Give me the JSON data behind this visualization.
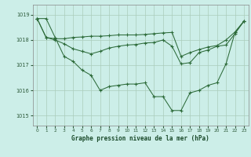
{
  "background_color": "#cceee8",
  "grid_color": "#aaccbb",
  "line_color": "#2d6b3a",
  "marker_color": "#2d6b3a",
  "xlabel": "Graphe pression niveau de la mer (hPa)",
  "ylim": [
    1014.6,
    1019.4
  ],
  "xlim": [
    -0.5,
    23.5
  ],
  "yticks": [
    1015,
    1016,
    1017,
    1018,
    1019
  ],
  "xticks": [
    0,
    1,
    2,
    3,
    4,
    5,
    6,
    7,
    8,
    9,
    10,
    11,
    12,
    13,
    14,
    15,
    16,
    17,
    18,
    19,
    20,
    21,
    22,
    23
  ],
  "series": [
    [
      1018.85,
      1018.85,
      1018.1,
      1017.35,
      1017.15,
      1016.8,
      1016.6,
      1016.0,
      1016.15,
      1016.2,
      1016.25,
      1016.25,
      1016.3,
      1015.75,
      1015.75,
      1015.2,
      1015.2,
      1015.9,
      1016.0,
      1016.2,
      1016.3,
      1017.05,
      1018.3,
      1018.75
    ],
    [
      1018.85,
      1018.1,
      1018.0,
      1017.85,
      1017.65,
      1017.55,
      1017.45,
      1017.55,
      1017.68,
      1017.75,
      1017.8,
      1017.82,
      1017.88,
      1017.9,
      1018.0,
      1017.75,
      1017.05,
      1017.1,
      1017.5,
      1017.6,
      1017.75,
      1017.8,
      1018.25,
      1018.75
    ],
    [
      1018.85,
      1018.1,
      1018.05,
      1018.05,
      1018.1,
      1018.12,
      1018.15,
      1018.15,
      1018.17,
      1018.2,
      1018.2,
      1018.2,
      1018.22,
      1018.25,
      1018.28,
      1018.3,
      1017.35,
      1017.5,
      1017.62,
      1017.72,
      1017.78,
      1018.0,
      1018.32,
      1018.75
    ]
  ]
}
